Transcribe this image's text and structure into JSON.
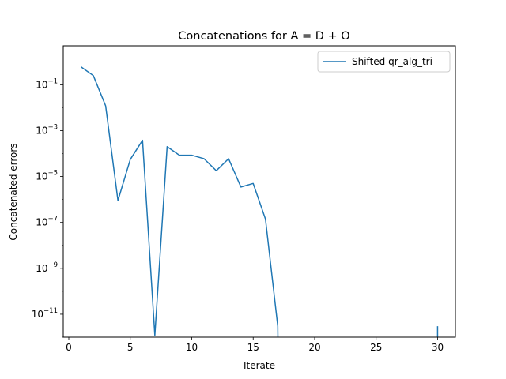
{
  "chart_data": {
    "type": "line",
    "title": "Concatenations for A = D + O",
    "xlabel": "Iterate",
    "ylabel": "Concatenated errors",
    "yscale": "log",
    "xlim": [
      -0.45,
      31.45
    ],
    "ylim": [
      1e-12,
      5
    ],
    "xticks": [
      0,
      5,
      10,
      15,
      20,
      25,
      30
    ],
    "yticks": [
      {
        "exp": -11,
        "base": "10",
        "sup": "−11"
      },
      {
        "exp": -9,
        "base": "10",
        "sup": "−9"
      },
      {
        "exp": -7,
        "base": "10",
        "sup": "−7"
      },
      {
        "exp": -5,
        "base": "10",
        "sup": "−5"
      },
      {
        "exp": -3,
        "base": "10",
        "sup": "−3"
      },
      {
        "exp": -1,
        "base": "10",
        "sup": "−1"
      }
    ],
    "legend": "top-right",
    "series": [
      {
        "name": "Shifted qr_alg_tri",
        "color": "#1f77b4",
        "x": [
          1,
          2,
          3,
          4,
          5,
          6,
          7,
          8,
          9,
          10,
          11,
          12,
          13,
          14,
          15,
          16,
          17,
          17.01
        ],
        "y": [
          0.6,
          0.25,
          0.012,
          9e-07,
          5.5e-05,
          0.00038,
          1.2e-12,
          0.0002,
          8.5e-05,
          8.5e-05,
          6e-05,
          1.8e-05,
          6e-05,
          3.5e-06,
          5e-06,
          1.4e-07,
          3e-12,
          1e-12
        ]
      },
      {
        "name": "",
        "color": "#1f77b4",
        "x": [
          30,
          30
        ],
        "y": [
          3e-12,
          1e-12
        ]
      }
    ]
  }
}
